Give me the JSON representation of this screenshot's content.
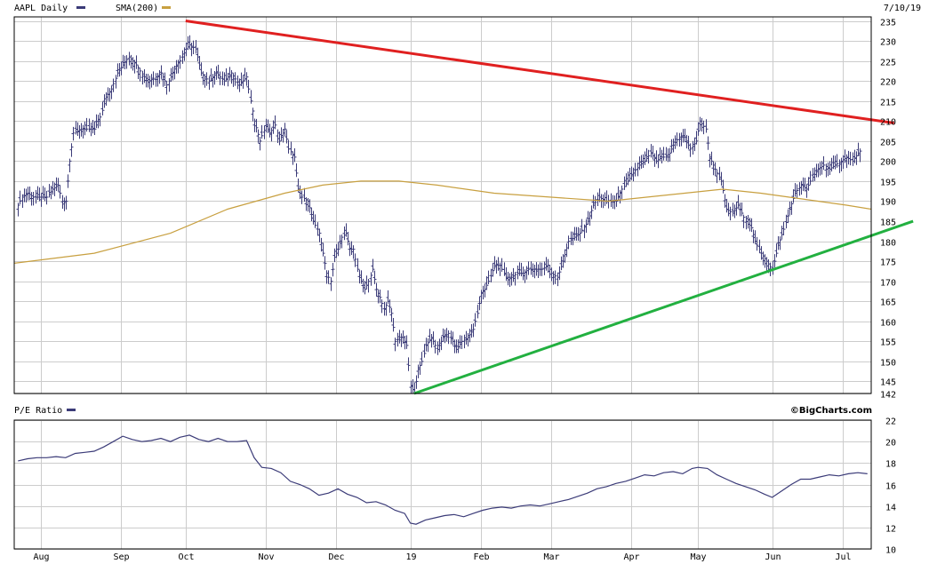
{
  "header": {
    "symbol_label": "AAPL Daily",
    "sma_label": "SMA(200)",
    "date": "7/10/19",
    "symbol_color": "#3b3b78",
    "sma_color": "#c8a040"
  },
  "lower_panel": {
    "label": "P/E Ratio",
    "line_color": "#3b3b78",
    "credit": "©BigCharts.com"
  },
  "chart_data": [
    {
      "type": "ohlc",
      "ylim": [
        142,
        236
      ],
      "y_ticks": [
        142,
        145,
        150,
        155,
        160,
        165,
        170,
        175,
        180,
        185,
        190,
        195,
        200,
        205,
        210,
        215,
        220,
        225,
        230,
        235
      ],
      "x_ticks": [
        "Aug",
        "Sep",
        "Oct",
        "Nov",
        "Dec",
        "19",
        "Feb",
        "Mar",
        "Apr",
        "May",
        "Jun",
        "Jul"
      ],
      "x_tick_days": [
        12,
        54,
        88,
        130,
        167,
        206,
        243,
        280,
        322,
        357,
        396,
        433
      ],
      "day_range": [
        -2,
        448
      ],
      "price_closes": [
        [
          0,
          189
        ],
        [
          2,
          191
        ],
        [
          5,
          192
        ],
        [
          8,
          191
        ],
        [
          12,
          191
        ],
        [
          15,
          191
        ],
        [
          18,
          193
        ],
        [
          21,
          194
        ],
        [
          23,
          190
        ],
        [
          25,
          190
        ],
        [
          27,
          200
        ],
        [
          29,
          207
        ],
        [
          33,
          208
        ],
        [
          36,
          208
        ],
        [
          40,
          208
        ],
        [
          43,
          211
        ],
        [
          46,
          216
        ],
        [
          49,
          218
        ],
        [
          52,
          222
        ],
        [
          55,
          224
        ],
        [
          58,
          226
        ],
        [
          62,
          224
        ],
        [
          66,
          221
        ],
        [
          69,
          220
        ],
        [
          72,
          221
        ],
        [
          75,
          222
        ],
        [
          78,
          219
        ],
        [
          80,
          221
        ],
        [
          83,
          224
        ],
        [
          85,
          225
        ],
        [
          88,
          228
        ],
        [
          90,
          229
        ],
        [
          93,
          228
        ],
        [
          96,
          222
        ],
        [
          100,
          220
        ],
        [
          104,
          222
        ],
        [
          108,
          220
        ],
        [
          112,
          222
        ],
        [
          116,
          219
        ],
        [
          120,
          221
        ],
        [
          122,
          215
        ],
        [
          124,
          210
        ],
        [
          127,
          205
        ],
        [
          130,
          209
        ],
        [
          132,
          207
        ],
        [
          135,
          209
        ],
        [
          137,
          205
        ],
        [
          140,
          208
        ],
        [
          142,
          203
        ],
        [
          145,
          201
        ],
        [
          147,
          193
        ],
        [
          149,
          191
        ],
        [
          152,
          190
        ],
        [
          155,
          185
        ],
        [
          158,
          182
        ],
        [
          162,
          172
        ],
        [
          164,
          170
        ],
        [
          166,
          176
        ],
        [
          168,
          178
        ],
        [
          170,
          181
        ],
        [
          172,
          182
        ],
        [
          174,
          178
        ],
        [
          176,
          178
        ],
        [
          178,
          173
        ],
        [
          180,
          170
        ],
        [
          182,
          168
        ],
        [
          184,
          170
        ],
        [
          186,
          173
        ],
        [
          188,
          168
        ],
        [
          190,
          166
        ],
        [
          192,
          163
        ],
        [
          194,
          165
        ],
        [
          196,
          162
        ],
        [
          198,
          155
        ],
        [
          200,
          156
        ],
        [
          202,
          156
        ],
        [
          204,
          154
        ],
        [
          206,
          144
        ],
        [
          208,
          142
        ],
        [
          210,
          148
        ],
        [
          212,
          150
        ],
        [
          214,
          154
        ],
        [
          217,
          156
        ],
        [
          220,
          153
        ],
        [
          223,
          156
        ],
        [
          226,
          157
        ],
        [
          230,
          153
        ],
        [
          233,
          155
        ],
        [
          236,
          156
        ],
        [
          239,
          158
        ],
        [
          241,
          162
        ],
        [
          243,
          167
        ],
        [
          245,
          168
        ],
        [
          247,
          170
        ],
        [
          250,
          174
        ],
        [
          253,
          174
        ],
        [
          256,
          171
        ],
        [
          259,
          171
        ],
        [
          262,
          172
        ],
        [
          265,
          172
        ],
        [
          268,
          173
        ],
        [
          272,
          173
        ],
        [
          275,
          173
        ],
        [
          278,
          174
        ],
        [
          280,
          172
        ],
        [
          283,
          171
        ],
        [
          286,
          175
        ],
        [
          289,
          180
        ],
        [
          292,
          181
        ],
        [
          295,
          182
        ],
        [
          299,
          185
        ],
        [
          302,
          189
        ],
        [
          305,
          191
        ],
        [
          308,
          190
        ],
        [
          311,
          190
        ],
        [
          314,
          190
        ],
        [
          317,
          193
        ],
        [
          320,
          195
        ],
        [
          323,
          197
        ],
        [
          326,
          199
        ],
        [
          329,
          200
        ],
        [
          332,
          202
        ],
        [
          335,
          200
        ],
        [
          338,
          201
        ],
        [
          341,
          201
        ],
        [
          344,
          204
        ],
        [
          347,
          206
        ],
        [
          350,
          206
        ],
        [
          353,
          203
        ],
        [
          356,
          205
        ],
        [
          358,
          210
        ],
        [
          361,
          208
        ],
        [
          363,
          201
        ],
        [
          366,
          198
        ],
        [
          369,
          195
        ],
        [
          372,
          188
        ],
        [
          375,
          187
        ],
        [
          378,
          189
        ],
        [
          381,
          186
        ],
        [
          384,
          185
        ],
        [
          387,
          180
        ],
        [
          390,
          177
        ],
        [
          393,
          175
        ],
        [
          396,
          173
        ],
        [
          399,
          179
        ],
        [
          402,
          183
        ],
        [
          405,
          188
        ],
        [
          408,
          192
        ],
        [
          411,
          194
        ],
        [
          414,
          193
        ],
        [
          417,
          196
        ],
        [
          420,
          198
        ],
        [
          423,
          199
        ],
        [
          426,
          198
        ],
        [
          429,
          199
        ],
        [
          432,
          200
        ],
        [
          435,
          201
        ],
        [
          438,
          200
        ],
        [
          441,
          202
        ],
        [
          443,
          203
        ]
      ],
      "series": [
        {
          "name": "SMA(200)",
          "points": [
            [
              -2,
              174.5
            ],
            [
              40,
              177
            ],
            [
              80,
              182
            ],
            [
              110,
              188
            ],
            [
              140,
              192
            ],
            [
              160,
              194
            ],
            [
              180,
              195
            ],
            [
              200,
              195
            ],
            [
              220,
              194
            ],
            [
              250,
              192
            ],
            [
              280,
              191
            ],
            [
              310,
              190
            ],
            [
              330,
              191
            ],
            [
              350,
              192
            ],
            [
              370,
              193
            ],
            [
              390,
              192
            ],
            [
              405,
              191
            ],
            [
              420,
              190
            ],
            [
              435,
              189
            ],
            [
              448,
              188
            ]
          ]
        }
      ],
      "trendlines": [
        {
          "color": "#e02020",
          "from": [
            88,
            235
          ],
          "to": [
            460,
            209.5
          ]
        },
        {
          "color": "#22b040",
          "from": [
            208,
            142
          ],
          "to": [
            470,
            185
          ]
        }
      ]
    },
    {
      "type": "line",
      "ylim": [
        10,
        22
      ],
      "y_ticks": [
        10,
        12,
        14,
        16,
        18,
        20,
        22
      ],
      "series": [
        {
          "name": "P/E Ratio",
          "points": [
            [
              0,
              18.2
            ],
            [
              5,
              18.4
            ],
            [
              10,
              18.5
            ],
            [
              15,
              18.5
            ],
            [
              20,
              18.6
            ],
            [
              25,
              18.5
            ],
            [
              30,
              18.9
            ],
            [
              35,
              19.0
            ],
            [
              40,
              19.1
            ],
            [
              45,
              19.5
            ],
            [
              50,
              20.0
            ],
            [
              55,
              20.5
            ],
            [
              60,
              20.2
            ],
            [
              65,
              20.0
            ],
            [
              70,
              20.1
            ],
            [
              75,
              20.3
            ],
            [
              80,
              20.0
            ],
            [
              85,
              20.4
            ],
            [
              90,
              20.6
            ],
            [
              95,
              20.2
            ],
            [
              100,
              20.0
            ],
            [
              105,
              20.3
            ],
            [
              110,
              20.0
            ],
            [
              115,
              20.0
            ],
            [
              120,
              20.1
            ],
            [
              124,
              18.5
            ],
            [
              128,
              17.6
            ],
            [
              133,
              17.5
            ],
            [
              138,
              17.1
            ],
            [
              143,
              16.3
            ],
            [
              148,
              16.0
            ],
            [
              153,
              15.6
            ],
            [
              158,
              15.0
            ],
            [
              163,
              15.2
            ],
            [
              168,
              15.6
            ],
            [
              173,
              15.1
            ],
            [
              178,
              14.8
            ],
            [
              183,
              14.3
            ],
            [
              188,
              14.4
            ],
            [
              193,
              14.1
            ],
            [
              198,
              13.6
            ],
            [
              203,
              13.3
            ],
            [
              206,
              12.4
            ],
            [
              209,
              12.3
            ],
            [
              214,
              12.7
            ],
            [
              219,
              12.9
            ],
            [
              224,
              13.1
            ],
            [
              229,
              13.2
            ],
            [
              234,
              13.0
            ],
            [
              239,
              13.3
            ],
            [
              244,
              13.6
            ],
            [
              249,
              13.8
            ],
            [
              254,
              13.9
            ],
            [
              259,
              13.8
            ],
            [
              264,
              14.0
            ],
            [
              269,
              14.1
            ],
            [
              274,
              14.0
            ],
            [
              279,
              14.2
            ],
            [
              284,
              14.4
            ],
            [
              289,
              14.6
            ],
            [
              294,
              14.9
            ],
            [
              299,
              15.2
            ],
            [
              304,
              15.6
            ],
            [
              309,
              15.8
            ],
            [
              314,
              16.1
            ],
            [
              319,
              16.3
            ],
            [
              324,
              16.6
            ],
            [
              329,
              16.9
            ],
            [
              334,
              16.8
            ],
            [
              339,
              17.1
            ],
            [
              344,
              17.2
            ],
            [
              349,
              17.0
            ],
            [
              354,
              17.5
            ],
            [
              357,
              17.6
            ],
            [
              362,
              17.5
            ],
            [
              367,
              16.9
            ],
            [
              372,
              16.5
            ],
            [
              377,
              16.1
            ],
            [
              382,
              15.8
            ],
            [
              387,
              15.5
            ],
            [
              392,
              15.1
            ],
            [
              396,
              14.8
            ],
            [
              401,
              15.4
            ],
            [
              406,
              16.0
            ],
            [
              411,
              16.5
            ],
            [
              416,
              16.5
            ],
            [
              421,
              16.7
            ],
            [
              426,
              16.9
            ],
            [
              431,
              16.8
            ],
            [
              436,
              17.0
            ],
            [
              441,
              17.1
            ],
            [
              446,
              17.0
            ]
          ]
        }
      ]
    }
  ]
}
